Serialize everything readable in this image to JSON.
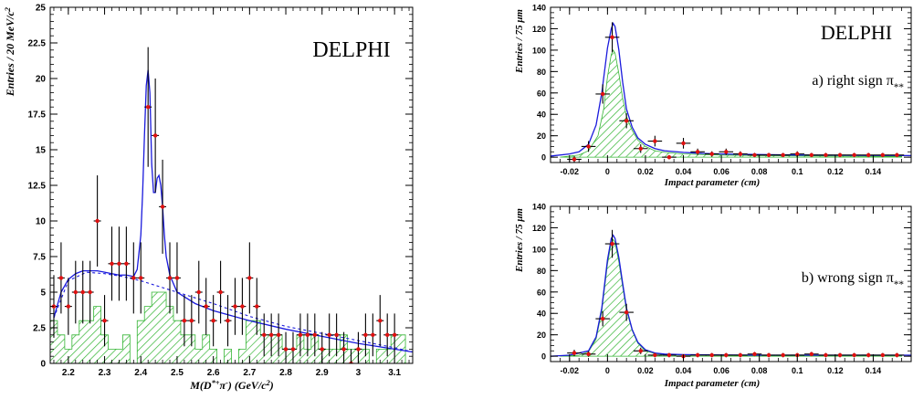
{
  "colors": {
    "fit": "#1a1adc",
    "hatch": "#35b535",
    "point": "#e01010",
    "err": "#000000",
    "axis": "#000000"
  },
  "chart_data": [
    {
      "type": "line",
      "label": "DELPHI",
      "xlabel": "M(D*+π-) (GeV/c2)",
      "ylabel": "Entries / 20 MeV/c2",
      "xlim": [
        2.15,
        3.15
      ],
      "ylim": [
        0,
        25
      ],
      "x_ticks": [
        "2.2",
        "2.3",
        "2.4",
        "2.5",
        "2.6",
        "2.7",
        "2.8",
        "2.9",
        "3",
        "3.1"
      ],
      "y_ticks": [
        "0",
        "2.5",
        "5",
        "7.5",
        "10",
        "12.5",
        "15",
        "17.5",
        "20",
        "22.5",
        "25"
      ],
      "points": {
        "x": [
          2.16,
          2.18,
          2.2,
          2.22,
          2.24,
          2.26,
          2.28,
          2.3,
          2.32,
          2.34,
          2.36,
          2.38,
          2.4,
          2.42,
          2.44,
          2.46,
          2.48,
          2.5,
          2.52,
          2.54,
          2.56,
          2.58,
          2.6,
          2.62,
          2.64,
          2.66,
          2.68,
          2.7,
          2.72,
          2.74,
          2.76,
          2.78,
          2.8,
          2.82,
          2.84,
          2.86,
          2.88,
          2.9,
          2.92,
          2.94,
          2.96,
          2.98,
          3,
          3.02,
          3.04,
          3.06,
          3.08,
          3.1
        ],
        "y": [
          4,
          6,
          4,
          5,
          5,
          5,
          10,
          3,
          7,
          7,
          7,
          6,
          6,
          18,
          16,
          11,
          6,
          6,
          3,
          3,
          5,
          4,
          3,
          5,
          3,
          4,
          4,
          6,
          4,
          2,
          2,
          2,
          1,
          1,
          2,
          2,
          2,
          1,
          2,
          2,
          1,
          0,
          1,
          2,
          2,
          3,
          2,
          2
        ],
        "yerr": [
          2.2,
          2.5,
          2,
          2.2,
          2.2,
          2.2,
          3.2,
          1.8,
          2.6,
          2.6,
          2.6,
          2.5,
          2.5,
          4.2,
          4,
          3.3,
          2.5,
          2.5,
          1.8,
          1.8,
          2.2,
          2,
          1.8,
          2.2,
          1.8,
          2,
          2,
          2.5,
          2,
          1.5,
          1.5,
          1.5,
          1.2,
          1.2,
          1.5,
          1.5,
          1.5,
          1.2,
          1.5,
          1.5,
          1.2,
          1,
          1.2,
          1.5,
          1.5,
          1.8,
          1.5,
          1.5
        ]
      },
      "fit_total": {
        "x": [
          2.16,
          2.18,
          2.2,
          2.22,
          2.24,
          2.26,
          2.28,
          2.3,
          2.32,
          2.34,
          2.36,
          2.38,
          2.39,
          2.4,
          2.405,
          2.41,
          2.415,
          2.42,
          2.425,
          2.43,
          2.435,
          2.44,
          2.445,
          2.45,
          2.455,
          2.46,
          2.465,
          2.47,
          2.48,
          2.5,
          2.55,
          2.6,
          2.7,
          2.8,
          2.9,
          3,
          3.1,
          3.15
        ],
        "y": [
          3.2,
          5,
          5.9,
          6.3,
          6.5,
          6.5,
          6.5,
          6.4,
          6.3,
          6.2,
          6.2,
          6.1,
          6.6,
          9,
          12,
          16,
          19.5,
          20.6,
          19,
          14,
          12,
          12,
          13,
          13.2,
          12.5,
          11,
          9,
          7.5,
          6.2,
          5,
          4.2,
          3.7,
          3,
          2.4,
          1.9,
          1.4,
          1,
          0.8
        ]
      },
      "fit_background": {
        "x": [
          2.16,
          2.2,
          2.25,
          2.3,
          2.35,
          2.4,
          2.45,
          2.5,
          2.6,
          2.7,
          2.8,
          2.9,
          3,
          3.1,
          3.15
        ],
        "y": [
          3.2,
          5.8,
          6.4,
          6.3,
          6.1,
          5.8,
          5.4,
          5,
          4.2,
          3.3,
          2.6,
          2.1,
          1.6,
          1.1,
          0.8
        ]
      },
      "histogram": {
        "edges": [
          2.15,
          2.17,
          2.19,
          2.21,
          2.23,
          2.25,
          2.27,
          2.29,
          2.31,
          2.33,
          2.35,
          2.37,
          2.39,
          2.41,
          2.43,
          2.45,
          2.47,
          2.49,
          2.51,
          2.53,
          2.55,
          2.57,
          2.59,
          2.61,
          2.63,
          2.65,
          2.67,
          2.69,
          2.71,
          2.73,
          2.75,
          2.77,
          2.79,
          2.81,
          2.83,
          2.85,
          2.87,
          2.89,
          2.91,
          2.93,
          2.95,
          2.97,
          2.99,
          3.01,
          3.03,
          3.05,
          3.07,
          3.09,
          3.11,
          3.13,
          3.15
        ],
        "values": [
          3,
          2,
          1,
          2,
          3,
          3,
          4,
          2,
          1,
          1,
          2,
          0,
          3,
          4,
          5,
          5,
          4,
          3,
          2,
          2,
          1,
          2,
          1,
          0,
          1,
          0,
          1,
          3,
          3,
          2,
          2,
          2,
          1,
          1,
          2,
          1,
          2,
          1,
          1,
          1,
          2,
          1,
          1,
          1,
          0,
          1,
          1,
          2,
          2,
          0
        ]
      }
    },
    {
      "type": "line",
      "label": "DELPHI",
      "annotation": "a) right sign π**",
      "xlabel": "Impact parameter (cm)",
      "ylabel": "Entries / 75 μm",
      "xlim": [
        -0.03,
        0.16
      ],
      "ylim": [
        -5,
        140
      ],
      "x_ticks": [
        "-0.02",
        "0",
        "0.02",
        "0.04",
        "0.06",
        "0.08",
        "0.1",
        "0.12",
        "0.14"
      ],
      "y_ticks": [
        "0",
        "20",
        "40",
        "60",
        "80",
        "100",
        "120",
        "140"
      ],
      "points": {
        "x": [
          -0.0175,
          -0.01,
          -0.0025,
          0.0025,
          0.01,
          0.0175,
          0.025,
          0.0325,
          0.04,
          0.0475,
          0.055,
          0.0625,
          0.07,
          0.0775,
          0.085,
          0.0925,
          0.1,
          0.1075,
          0.115,
          0.1225,
          0.13,
          0.1375,
          0.145,
          0.1525
        ],
        "y": [
          -2,
          10,
          59,
          112,
          34,
          8,
          15,
          0,
          13,
          5,
          3,
          5,
          3,
          2,
          2,
          2,
          3,
          2,
          2,
          2,
          2,
          2,
          2,
          2
        ],
        "yerr": [
          3,
          5,
          9,
          14,
          7,
          4,
          5,
          2,
          5,
          3,
          2.5,
          3,
          2.5,
          2,
          2,
          2,
          2.5,
          2,
          2,
          2,
          2,
          2,
          2,
          2
        ]
      },
      "fit_total": {
        "x": [
          -0.03,
          -0.02,
          -0.015,
          -0.01,
          -0.006,
          -0.003,
          0,
          0.002,
          0.003,
          0.004,
          0.006,
          0.008,
          0.01,
          0.013,
          0.016,
          0.02,
          0.025,
          0.03,
          0.04,
          0.05,
          0.06,
          0.08,
          0.1,
          0.12,
          0.14,
          0.16
        ],
        "y": [
          1,
          3,
          5,
          12,
          30,
          60,
          102,
          120,
          125,
          122,
          100,
          70,
          45,
          28,
          18,
          12,
          8,
          6,
          4.5,
          3.5,
          3,
          2.4,
          2,
          1.8,
          1.6,
          1.5
        ]
      },
      "signal_hatched": {
        "x": [
          -0.025,
          -0.015,
          -0.01,
          -0.005,
          -0.002,
          0,
          0.002,
          0.003,
          0.004,
          0.006,
          0.008,
          0.01,
          0.013,
          0.016,
          0.02,
          0.025,
          0.03,
          0.04,
          0.05,
          0.06,
          0.08,
          0.1,
          0.12,
          0.14,
          0.155
        ],
        "y": [
          0,
          2,
          6,
          20,
          45,
          75,
          96,
          100,
          97,
          78,
          55,
          38,
          25,
          16,
          10,
          6,
          4.5,
          3,
          2.5,
          2,
          1.5,
          1.2,
          1,
          0.8,
          0.6
        ]
      }
    },
    {
      "type": "line",
      "annotation": "b) wrong sign π**",
      "xlabel": "Impact parameter (cm)",
      "ylabel": "Entries / 75 μm",
      "xlim": [
        -0.03,
        0.16
      ],
      "ylim": [
        -5,
        140
      ],
      "x_ticks": [
        "-0.02",
        "0",
        "0.02",
        "0.04",
        "0.06",
        "0.08",
        "0.1",
        "0.12",
        "0.14"
      ],
      "y_ticks": [
        "0",
        "20",
        "40",
        "60",
        "80",
        "100",
        "120",
        "140"
      ],
      "points": {
        "x": [
          -0.0175,
          -0.01,
          -0.0025,
          0.0025,
          0.01,
          0.0175,
          0.025,
          0.0325,
          0.04,
          0.0475,
          0.055,
          0.0625,
          0.07,
          0.0775,
          0.085,
          0.0925,
          0.1,
          0.1075,
          0.115,
          0.1225,
          0.13,
          0.1375,
          0.145,
          0.1525
        ],
        "y": [
          3,
          2,
          35,
          105,
          41,
          5,
          1,
          1,
          0,
          1,
          1,
          1,
          1,
          2,
          1,
          1,
          1,
          2,
          1,
          1,
          1,
          1,
          1,
          1
        ],
        "yerr": [
          3,
          2.5,
          7,
          13,
          8,
          3,
          2,
          2,
          1.5,
          2,
          2,
          2,
          2,
          2,
          2,
          2,
          2,
          2,
          2,
          2,
          2,
          2,
          2,
          2
        ]
      },
      "fit_total": {
        "x": [
          -0.03,
          -0.02,
          -0.01,
          -0.006,
          -0.003,
          0,
          0.002,
          0.003,
          0.004,
          0.006,
          0.008,
          0.01,
          0.013,
          0.016,
          0.02,
          0.025,
          0.03,
          0.04,
          0.06,
          0.08,
          0.1,
          0.12,
          0.14,
          0.16
        ],
        "y": [
          0,
          1,
          5,
          18,
          45,
          90,
          110,
          113,
          110,
          92,
          68,
          45,
          25,
          13,
          6,
          3,
          2,
          1.5,
          1.2,
          1,
          1,
          1,
          1,
          1
        ]
      },
      "signal_hatched": {
        "x": [
          -0.025,
          -0.015,
          -0.01,
          -0.006,
          -0.003,
          0,
          0.002,
          0.003,
          0.004,
          0.006,
          0.008,
          0.01,
          0.013,
          0.016,
          0.02,
          0.025,
          0.03,
          0.04,
          0.06,
          0.08,
          0.1,
          0.12,
          0.14,
          0.155
        ],
        "y": [
          0,
          1,
          4,
          16,
          42,
          86,
          106,
          109,
          106,
          88,
          65,
          43,
          24,
          12,
          5,
          2.5,
          1.5,
          1,
          0.8,
          0.6,
          0.5,
          0.4,
          0.4,
          0.3
        ]
      }
    }
  ]
}
